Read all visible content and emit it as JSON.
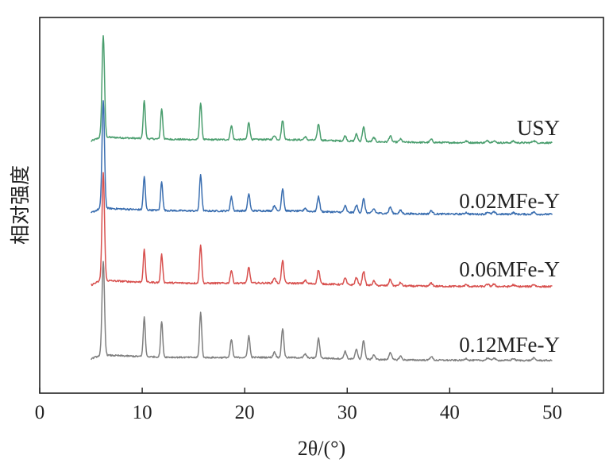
{
  "chart_data": {
    "type": "line",
    "title": "",
    "xlabel": "2θ/(°)",
    "ylabel": "相对强度",
    "xlim": [
      0,
      55
    ],
    "xticks": [
      0,
      10,
      20,
      30,
      40,
      50
    ],
    "x_range": [
      5,
      50
    ],
    "grid": false,
    "legend": "inline-labels-right",
    "peaks_2theta": [
      6.2,
      10.2,
      11.9,
      15.7,
      18.7,
      20.4,
      22.9,
      23.7,
      25.9,
      27.2,
      29.8,
      30.9,
      31.6,
      32.6,
      34.2,
      35.2,
      38.2,
      41.6,
      43.7,
      44.3,
      46.2,
      48.2
    ],
    "series": [
      {
        "name": "USY",
        "color": "#4a9e6e",
        "peak_heights": [
          100,
          38,
          30,
          36,
          14,
          17,
          4,
          19,
          3,
          16,
          5,
          7,
          14,
          4,
          6,
          3,
          3,
          1.5,
          2,
          2,
          1.5,
          2
        ]
      },
      {
        "name": "0.02MFe-Y",
        "color": "#3a6eb0",
        "peak_heights": [
          100,
          31,
          27,
          34,
          13,
          16,
          5,
          21,
          3,
          14,
          6,
          7,
          13,
          4,
          6,
          3,
          3,
          1.5,
          2,
          2,
          1.5,
          2
        ]
      },
      {
        "name": "0.06MFe-Y",
        "color": "#d8504e",
        "peak_heights": [
          100,
          30,
          26,
          36,
          12,
          15,
          5,
          21,
          3,
          13,
          6,
          7,
          13,
          4,
          6,
          3,
          3,
          1.5,
          2,
          2,
          1.5,
          2
        ]
      },
      {
        "name": "0.12MFe-Y",
        "color": "#7f7f7f",
        "peak_heights": [
          100,
          42,
          38,
          48,
          19,
          23,
          6,
          31,
          4,
          21,
          8,
          10,
          20,
          5,
          8,
          4,
          4,
          2,
          2.5,
          2.5,
          2,
          2.5
        ]
      }
    ]
  }
}
